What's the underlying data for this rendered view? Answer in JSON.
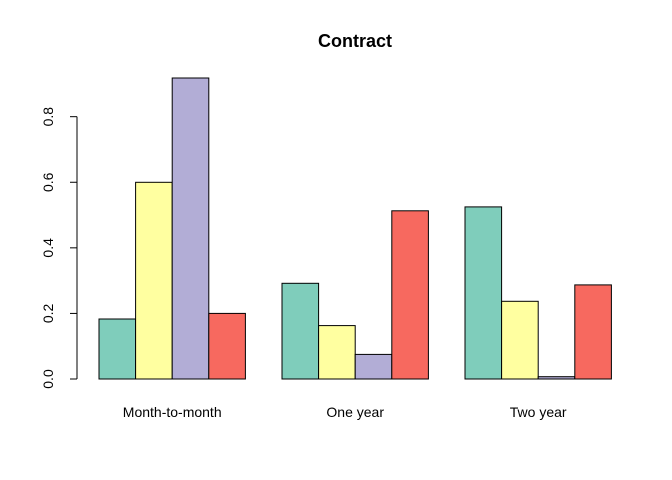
{
  "chart_data": {
    "type": "bar",
    "title": "Contract",
    "xlabel": "",
    "ylabel": "",
    "categories": [
      "Month-to-month",
      "One year",
      "Two year"
    ],
    "series": [
      {
        "color": "#7FCDBB",
        "values": [
          0.183,
          0.292,
          0.525
        ]
      },
      {
        "color": "#FFFFA0",
        "values": [
          0.6,
          0.163,
          0.237
        ]
      },
      {
        "color": "#B2ADD6",
        "values": [
          0.918,
          0.075,
          0.007
        ]
      },
      {
        "color": "#F7695F",
        "values": [
          0.2,
          0.513,
          0.287
        ]
      }
    ],
    "yticks": [
      0.0,
      0.2,
      0.4,
      0.6,
      0.8
    ],
    "ytick_labels": [
      "0.0",
      "0.2",
      "0.4",
      "0.6",
      "0.8"
    ],
    "ylim": [
      0,
      0.918
    ],
    "grid": false,
    "legend": "none"
  }
}
